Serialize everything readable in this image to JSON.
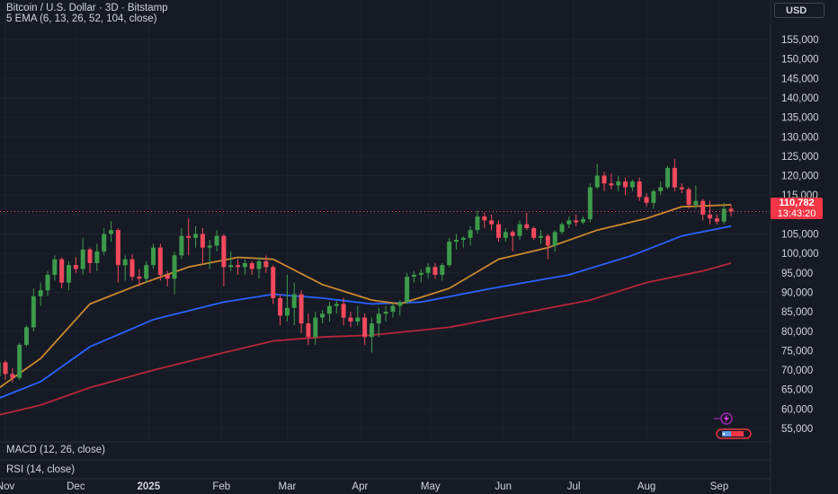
{
  "header": {
    "title": "Bitcoin / U.S. Dollar · 3D · Bitstamp",
    "indicator": "5 EMA (6, 13, 26, 52, 104, close)",
    "currency_button": "USD"
  },
  "panes": {
    "macd_label": "MACD (12, 26, close)",
    "rsi_label": "RSI (14, close)"
  },
  "last_price": {
    "value": "110,782",
    "countdown": "13:43:20"
  },
  "colors": {
    "background": "#161a25",
    "grid": "#1e222d",
    "up": "#26a69a",
    "up_candle": "#3d9a4a",
    "down": "#f2495c",
    "ema_fast": "#c9892f",
    "ema_mid": "#2962ff",
    "ema_slow": "#b5263a",
    "price_tag": "#f23645",
    "text": "#d1d4dc"
  },
  "icons": {
    "flash": "lightning-icon",
    "flag": "flag-icon"
  },
  "chart_data": {
    "type": "candlestick",
    "ylim": [
      51000,
      158000
    ],
    "y_ticks": [
      "55,000",
      "60,000",
      "65,000",
      "70,000",
      "75,000",
      "80,000",
      "85,000",
      "90,000",
      "95,000",
      "100,000",
      "105,000",
      "110,000",
      "115,000",
      "120,000",
      "125,000",
      "130,000",
      "135,000",
      "140,000",
      "145,000",
      "150,000",
      "155,000"
    ],
    "y_tick_values": [
      55000,
      60000,
      65000,
      70000,
      75000,
      80000,
      85000,
      90000,
      95000,
      100000,
      105000,
      110000,
      115000,
      120000,
      125000,
      130000,
      135000,
      140000,
      145000,
      150000,
      155000
    ],
    "x_ticks": [
      "Nov",
      "Dec",
      "2025",
      "Feb",
      "Mar",
      "Apr",
      "May",
      "Jun",
      "Jul",
      "Aug",
      "Sep"
    ],
    "x_tick_dates": [
      "2024-11-01",
      "2024-12-01",
      "2025-01-01",
      "2025-02-01",
      "2025-03-01",
      "2025-04-01",
      "2025-05-01",
      "2025-06-01",
      "2025-07-01",
      "2025-08-01",
      "2025-09-01"
    ],
    "candles": [
      {
        "d": "2024-10-26",
        "o": 67000,
        "h": 69000,
        "l": 66000,
        "c": 68500
      },
      {
        "d": "2024-10-29",
        "o": 68500,
        "h": 73600,
        "l": 68000,
        "c": 72000
      },
      {
        "d": "2024-11-01",
        "o": 72000,
        "h": 72500,
        "l": 67500,
        "c": 69000
      },
      {
        "d": "2024-11-04",
        "o": 69000,
        "h": 70500,
        "l": 66800,
        "c": 68000
      },
      {
        "d": "2024-11-07",
        "o": 68000,
        "h": 77000,
        "l": 67500,
        "c": 76500
      },
      {
        "d": "2024-11-10",
        "o": 76500,
        "h": 81500,
        "l": 76000,
        "c": 81000
      },
      {
        "d": "2024-11-13",
        "o": 81000,
        "h": 91000,
        "l": 80000,
        "c": 89000
      },
      {
        "d": "2024-11-16",
        "o": 89000,
        "h": 92500,
        "l": 86500,
        "c": 90500
      },
      {
        "d": "2024-11-19",
        "o": 90500,
        "h": 95500,
        "l": 89000,
        "c": 94500
      },
      {
        "d": "2024-11-22",
        "o": 94500,
        "h": 99500,
        "l": 93000,
        "c": 98500
      },
      {
        "d": "2024-11-25",
        "o": 98500,
        "h": 99000,
        "l": 91000,
        "c": 92500
      },
      {
        "d": "2024-11-28",
        "o": 92500,
        "h": 98000,
        "l": 90500,
        "c": 97000
      },
      {
        "d": "2024-12-01",
        "o": 97000,
        "h": 99000,
        "l": 95000,
        "c": 96000
      },
      {
        "d": "2024-12-04",
        "o": 96000,
        "h": 104000,
        "l": 94500,
        "c": 101000
      },
      {
        "d": "2024-12-07",
        "o": 101000,
        "h": 101500,
        "l": 95000,
        "c": 97500
      },
      {
        "d": "2024-12-10",
        "o": 97500,
        "h": 102500,
        "l": 95500,
        "c": 100500
      },
      {
        "d": "2024-12-13",
        "o": 100500,
        "h": 106500,
        "l": 99500,
        "c": 105000
      },
      {
        "d": "2024-12-16",
        "o": 105000,
        "h": 108300,
        "l": 103000,
        "c": 106000
      },
      {
        "d": "2024-12-19",
        "o": 106000,
        "h": 106500,
        "l": 92500,
        "c": 97000
      },
      {
        "d": "2024-12-22",
        "o": 97000,
        "h": 99500,
        "l": 93000,
        "c": 98500
      },
      {
        "d": "2024-12-25",
        "o": 98500,
        "h": 99800,
        "l": 93000,
        "c": 94000
      },
      {
        "d": "2024-12-28",
        "o": 94000,
        "h": 96000,
        "l": 91500,
        "c": 93500
      },
      {
        "d": "2024-12-31",
        "o": 93500,
        "h": 98000,
        "l": 92500,
        "c": 97000
      },
      {
        "d": "2025-01-03",
        "o": 97000,
        "h": 102500,
        "l": 96000,
        "c": 101500
      },
      {
        "d": "2025-01-06",
        "o": 101500,
        "h": 102500,
        "l": 93000,
        "c": 94500
      },
      {
        "d": "2025-01-09",
        "o": 94500,
        "h": 95500,
        "l": 91500,
        "c": 93500
      },
      {
        "d": "2025-01-12",
        "o": 93500,
        "h": 100500,
        "l": 89500,
        "c": 99500
      },
      {
        "d": "2025-01-15",
        "o": 99500,
        "h": 106500,
        "l": 98500,
        "c": 104500
      },
      {
        "d": "2025-01-18",
        "o": 104500,
        "h": 109000,
        "l": 99500,
        "c": 104000
      },
      {
        "d": "2025-01-21",
        "o": 104000,
        "h": 107000,
        "l": 101500,
        "c": 105000
      },
      {
        "d": "2025-01-24",
        "o": 105000,
        "h": 106500,
        "l": 97500,
        "c": 101500
      },
      {
        "d": "2025-01-27",
        "o": 101500,
        "h": 103500,
        "l": 96000,
        "c": 102000
      },
      {
        "d": "2025-01-30",
        "o": 102000,
        "h": 106000,
        "l": 100500,
        "c": 104500
      },
      {
        "d": "2025-02-02",
        "o": 104500,
        "h": 105000,
        "l": 91500,
        "c": 96500
      },
      {
        "d": "2025-02-05",
        "o": 96500,
        "h": 100500,
        "l": 95500,
        "c": 97000
      },
      {
        "d": "2025-02-08",
        "o": 97000,
        "h": 98500,
        "l": 94500,
        "c": 96500
      },
      {
        "d": "2025-02-11",
        "o": 96500,
        "h": 98500,
        "l": 94500,
        "c": 97500
      },
      {
        "d": "2025-02-14",
        "o": 97500,
        "h": 98000,
        "l": 94500,
        "c": 96000
      },
      {
        "d": "2025-02-17",
        "o": 96000,
        "h": 99000,
        "l": 93500,
        "c": 98000
      },
      {
        "d": "2025-02-20",
        "o": 98000,
        "h": 99500,
        "l": 95000,
        "c": 96500
      },
      {
        "d": "2025-02-23",
        "o": 96500,
        "h": 97000,
        "l": 87000,
        "c": 88500
      },
      {
        "d": "2025-02-26",
        "o": 88500,
        "h": 89500,
        "l": 81500,
        "c": 84000
      },
      {
        "d": "2025-03-01",
        "o": 84000,
        "h": 94500,
        "l": 82500,
        "c": 86000
      },
      {
        "d": "2025-03-04",
        "o": 86000,
        "h": 92500,
        "l": 81500,
        "c": 89500
      },
      {
        "d": "2025-03-07",
        "o": 89500,
        "h": 90500,
        "l": 79500,
        "c": 82000
      },
      {
        "d": "2025-03-10",
        "o": 82000,
        "h": 84500,
        "l": 76500,
        "c": 78500
      },
      {
        "d": "2025-03-13",
        "o": 78500,
        "h": 85000,
        "l": 76500,
        "c": 83500
      },
      {
        "d": "2025-03-16",
        "o": 83500,
        "h": 85500,
        "l": 82000,
        "c": 84500
      },
      {
        "d": "2025-03-19",
        "o": 84500,
        "h": 87500,
        "l": 82500,
        "c": 86500
      },
      {
        "d": "2025-03-22",
        "o": 86500,
        "h": 88000,
        "l": 84500,
        "c": 87000
      },
      {
        "d": "2025-03-25",
        "o": 87000,
        "h": 88500,
        "l": 81500,
        "c": 83500
      },
      {
        "d": "2025-03-28",
        "o": 83500,
        "h": 85000,
        "l": 81000,
        "c": 82500
      },
      {
        "d": "2025-03-31",
        "o": 82500,
        "h": 86500,
        "l": 81500,
        "c": 83500
      },
      {
        "d": "2025-04-03",
        "o": 83500,
        "h": 84500,
        "l": 76500,
        "c": 78500
      },
      {
        "d": "2025-04-06",
        "o": 78500,
        "h": 83500,
        "l": 74500,
        "c": 82000
      },
      {
        "d": "2025-04-09",
        "o": 82000,
        "h": 86000,
        "l": 78500,
        "c": 84500
      },
      {
        "d": "2025-04-12",
        "o": 84500,
        "h": 86500,
        "l": 82500,
        "c": 85000
      },
      {
        "d": "2025-04-15",
        "o": 85000,
        "h": 87000,
        "l": 83500,
        "c": 86500
      },
      {
        "d": "2025-04-18",
        "o": 86500,
        "h": 88000,
        "l": 84000,
        "c": 87500
      },
      {
        "d": "2025-04-21",
        "o": 87500,
        "h": 95000,
        "l": 87000,
        "c": 94000
      },
      {
        "d": "2025-04-24",
        "o": 94000,
        "h": 95500,
        "l": 92500,
        "c": 94500
      },
      {
        "d": "2025-04-27",
        "o": 94500,
        "h": 96000,
        "l": 92500,
        "c": 95000
      },
      {
        "d": "2025-04-30",
        "o": 95000,
        "h": 97500,
        "l": 93500,
        "c": 96500
      },
      {
        "d": "2025-05-03",
        "o": 96500,
        "h": 97500,
        "l": 93500,
        "c": 94500
      },
      {
        "d": "2025-05-06",
        "o": 94500,
        "h": 97500,
        "l": 93000,
        "c": 97000
      },
      {
        "d": "2025-05-09",
        "o": 97000,
        "h": 104000,
        "l": 96500,
        "c": 103000
      },
      {
        "d": "2025-05-12",
        "o": 103000,
        "h": 105000,
        "l": 101000,
        "c": 103500
      },
      {
        "d": "2025-05-15",
        "o": 103500,
        "h": 104500,
        "l": 101500,
        "c": 104000
      },
      {
        "d": "2025-05-18",
        "o": 104000,
        "h": 107000,
        "l": 102000,
        "c": 106000
      },
      {
        "d": "2025-05-21",
        "o": 106000,
        "h": 111000,
        "l": 105000,
        "c": 109500
      },
      {
        "d": "2025-05-24",
        "o": 109500,
        "h": 110500,
        "l": 106500,
        "c": 108500
      },
      {
        "d": "2025-05-27",
        "o": 108500,
        "h": 110000,
        "l": 106000,
        "c": 107500
      },
      {
        "d": "2025-05-30",
        "o": 107500,
        "h": 108500,
        "l": 103000,
        "c": 104000
      },
      {
        "d": "2025-06-02",
        "o": 104000,
        "h": 106500,
        "l": 103000,
        "c": 105500
      },
      {
        "d": "2025-06-05",
        "o": 105500,
        "h": 106000,
        "l": 100500,
        "c": 104500
      },
      {
        "d": "2025-06-08",
        "o": 104500,
        "h": 108500,
        "l": 103500,
        "c": 107500
      },
      {
        "d": "2025-06-11",
        "o": 107500,
        "h": 110500,
        "l": 106000,
        "c": 106500
      },
      {
        "d": "2025-06-14",
        "o": 106500,
        "h": 107000,
        "l": 103500,
        "c": 104000
      },
      {
        "d": "2025-06-17",
        "o": 104000,
        "h": 106000,
        "l": 102500,
        "c": 104500
      },
      {
        "d": "2025-06-20",
        "o": 104500,
        "h": 105000,
        "l": 98500,
        "c": 102000
      },
      {
        "d": "2025-06-23",
        "o": 102000,
        "h": 106000,
        "l": 100500,
        "c": 105500
      },
      {
        "d": "2025-06-26",
        "o": 105500,
        "h": 108000,
        "l": 105000,
        "c": 107500
      },
      {
        "d": "2025-06-29",
        "o": 107500,
        "h": 109500,
        "l": 106500,
        "c": 108500
      },
      {
        "d": "2025-07-02",
        "o": 108500,
        "h": 110000,
        "l": 107000,
        "c": 108000
      },
      {
        "d": "2025-07-05",
        "o": 108000,
        "h": 109500,
        "l": 107500,
        "c": 108800
      },
      {
        "d": "2025-07-08",
        "o": 108800,
        "h": 118000,
        "l": 108000,
        "c": 117000
      },
      {
        "d": "2025-07-11",
        "o": 117000,
        "h": 123000,
        "l": 116500,
        "c": 120000
      },
      {
        "d": "2025-07-14",
        "o": 120000,
        "h": 121000,
        "l": 116000,
        "c": 118000
      },
      {
        "d": "2025-07-17",
        "o": 118000,
        "h": 120500,
        "l": 116500,
        "c": 117500
      },
      {
        "d": "2025-07-20",
        "o": 117500,
        "h": 120000,
        "l": 116000,
        "c": 118500
      },
      {
        "d": "2025-07-23",
        "o": 118500,
        "h": 119500,
        "l": 115000,
        "c": 117000
      },
      {
        "d": "2025-07-26",
        "o": 117000,
        "h": 119000,
        "l": 116000,
        "c": 118500
      },
      {
        "d": "2025-07-29",
        "o": 118500,
        "h": 119500,
        "l": 113500,
        "c": 114500
      },
      {
        "d": "2025-08-01",
        "o": 114500,
        "h": 115500,
        "l": 112000,
        "c": 113000
      },
      {
        "d": "2025-08-04",
        "o": 113000,
        "h": 116500,
        "l": 111500,
        "c": 116000
      },
      {
        "d": "2025-08-07",
        "o": 116000,
        "h": 118500,
        "l": 115000,
        "c": 117000
      },
      {
        "d": "2025-08-10",
        "o": 117000,
        "h": 122500,
        "l": 116500,
        "c": 122000
      },
      {
        "d": "2025-08-13",
        "o": 122000,
        "h": 124300,
        "l": 116000,
        "c": 117000
      },
      {
        "d": "2025-08-16",
        "o": 117000,
        "h": 118000,
        "l": 115500,
        "c": 116500
      },
      {
        "d": "2025-08-19",
        "o": 116500,
        "h": 117000,
        "l": 111500,
        "c": 112500
      },
      {
        "d": "2025-08-22",
        "o": 112500,
        "h": 117500,
        "l": 111500,
        "c": 113500
      },
      {
        "d": "2025-08-25",
        "o": 113500,
        "h": 114000,
        "l": 108500,
        "c": 110000
      },
      {
        "d": "2025-08-28",
        "o": 110000,
        "h": 113500,
        "l": 107500,
        "c": 109000
      },
      {
        "d": "2025-08-31",
        "o": 109000,
        "h": 110000,
        "l": 107500,
        "c": 108200
      },
      {
        "d": "2025-09-03",
        "o": 108200,
        "h": 113000,
        "l": 107500,
        "c": 111500
      },
      {
        "d": "2025-09-06",
        "o": 111500,
        "h": 112500,
        "l": 109500,
        "c": 110782
      }
    ],
    "ema_fast": [
      [
        "2024-10-26",
        64000
      ],
      [
        "2024-11-16",
        73000
      ],
      [
        "2024-12-07",
        87000
      ],
      [
        "2024-12-28",
        92000
      ],
      [
        "2025-01-18",
        96500
      ],
      [
        "2025-02-08",
        99000
      ],
      [
        "2025-02-23",
        98500
      ],
      [
        "2025-03-16",
        92000
      ],
      [
        "2025-04-06",
        88000
      ],
      [
        "2025-04-18",
        87000
      ],
      [
        "2025-05-09",
        91000
      ],
      [
        "2025-05-30",
        98500
      ],
      [
        "2025-06-20",
        101500
      ],
      [
        "2025-07-11",
        106000
      ],
      [
        "2025-08-01",
        109000
      ],
      [
        "2025-08-16",
        112000
      ],
      [
        "2025-09-06",
        112500
      ]
    ],
    "ema_mid": [
      [
        "2024-10-26",
        62000
      ],
      [
        "2024-11-16",
        67000
      ],
      [
        "2024-12-07",
        76000
      ],
      [
        "2025-01-03",
        83000
      ],
      [
        "2025-02-02",
        87500
      ],
      [
        "2025-02-23",
        89500
      ],
      [
        "2025-03-16",
        88500
      ],
      [
        "2025-04-06",
        87000
      ],
      [
        "2025-04-27",
        87500
      ],
      [
        "2025-05-27",
        91000
      ],
      [
        "2025-06-29",
        94500
      ],
      [
        "2025-07-26",
        99500
      ],
      [
        "2025-08-16",
        104500
      ],
      [
        "2025-09-06",
        107000
      ]
    ],
    "ema_slow": [
      [
        "2024-10-26",
        58000
      ],
      [
        "2024-11-16",
        61000
      ],
      [
        "2024-12-07",
        65500
      ],
      [
        "2025-01-03",
        70000
      ],
      [
        "2025-02-02",
        74500
      ],
      [
        "2025-02-23",
        77500
      ],
      [
        "2025-03-16",
        78500
      ],
      [
        "2025-04-06",
        79000
      ],
      [
        "2025-05-09",
        81000
      ],
      [
        "2025-06-08",
        84500
      ],
      [
        "2025-07-08",
        88000
      ],
      [
        "2025-08-01",
        92500
      ],
      [
        "2025-08-25",
        95500
      ],
      [
        "2025-09-06",
        97500
      ]
    ]
  }
}
